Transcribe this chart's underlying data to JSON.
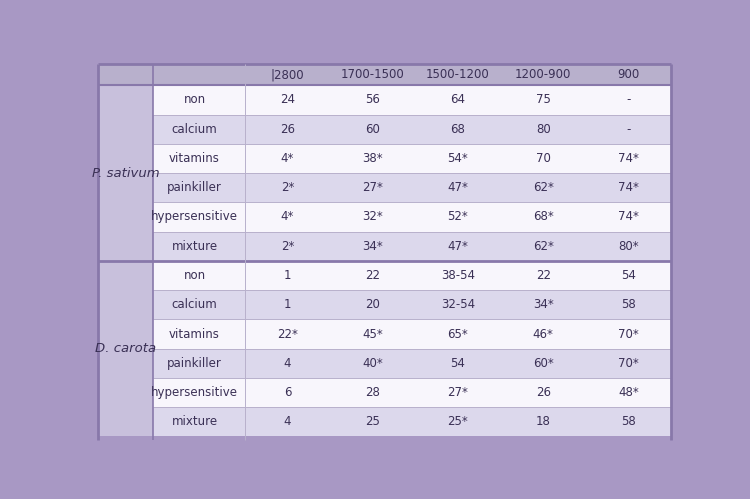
{
  "col_headers": [
    "|2800",
    "1700-1500",
    "1500-1200",
    "1200-900",
    "900"
  ],
  "section1_label": "P. sativum",
  "section2_label": "D. carota",
  "rows": [
    {
      "section": 1,
      "drug": "non",
      "vals": [
        "24",
        "56",
        "64",
        "75",
        "-"
      ]
    },
    {
      "section": 1,
      "drug": "calcium",
      "vals": [
        "26",
        "60",
        "68",
        "80",
        "-"
      ]
    },
    {
      "section": 1,
      "drug": "vitamins",
      "vals": [
        "4*",
        "38*",
        "54*",
        "70",
        "74*"
      ]
    },
    {
      "section": 1,
      "drug": "painkiller",
      "vals": [
        "2*",
        "27*",
        "47*",
        "62*",
        "74*"
      ]
    },
    {
      "section": 1,
      "drug": "hypersensitive",
      "vals": [
        "4*",
        "32*",
        "52*",
        "68*",
        "74*"
      ]
    },
    {
      "section": 1,
      "drug": "mixture",
      "vals": [
        "2*",
        "34*",
        "47*",
        "62*",
        "80*"
      ]
    },
    {
      "section": 2,
      "drug": "non",
      "vals": [
        "1",
        "22",
        "38-54",
        "22",
        "54"
      ]
    },
    {
      "section": 2,
      "drug": "calcium",
      "vals": [
        "1",
        "20",
        "32-54",
        "34*",
        "58"
      ]
    },
    {
      "section": 2,
      "drug": "vitamins",
      "vals": [
        "22*",
        "45*",
        "65*",
        "46*",
        "70*"
      ]
    },
    {
      "section": 2,
      "drug": "painkiller",
      "vals": [
        "4",
        "40*",
        "54",
        "60*",
        "70*"
      ]
    },
    {
      "section": 2,
      "drug": "hypersensitive",
      "vals": [
        "6",
        "28",
        "27*",
        "26",
        "48*"
      ]
    },
    {
      "section": 2,
      "drug": "mixture",
      "vals": [
        "4",
        "25",
        "25*",
        "18",
        "58"
      ]
    }
  ],
  "header_bg": "#b8b0cc",
  "row_bg_light": "#f8f6fc",
  "row_bg_shaded": "#dcd8ec",
  "section_col_bg": "#c8c0dc",
  "section_divider_color": "#8878aa",
  "inner_divider_color": "#b8b0cc",
  "outer_bg_color": "#a898c4",
  "text_color": "#3a3055",
  "font_size": 8.5,
  "header_font_size": 8.5,
  "section_label_font_size": 9.5,
  "shaded_rows": [
    1,
    3,
    5,
    7,
    9,
    11
  ]
}
